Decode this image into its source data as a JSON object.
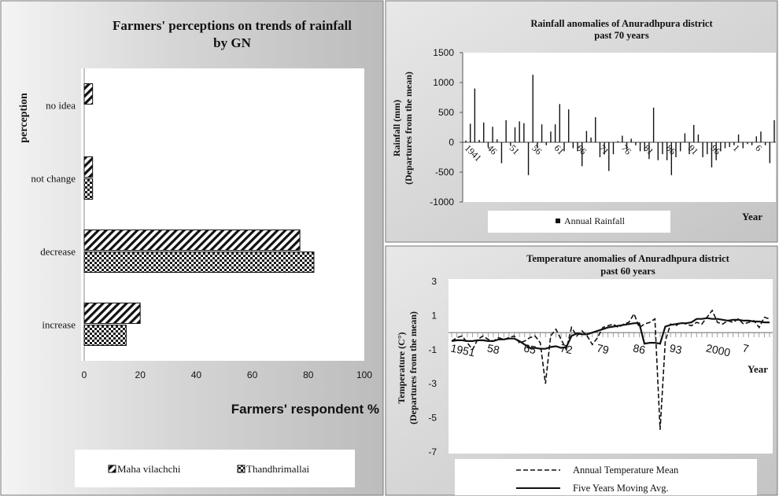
{
  "panels": [
    {
      "type": "bar",
      "orientation": "horizontal",
      "title_line1": "Farmers' perceptions on trends of rainfall",
      "title_line2": "by GN",
      "categories": [
        "increase",
        "decrease",
        "not change",
        "no idea"
      ],
      "series": [
        {
          "name": "Maha vilachchi",
          "values": [
            20,
            77,
            3,
            3
          ],
          "pattern": "diagonal-hatch"
        },
        {
          "name": "Thandhrimallai",
          "values": [
            15,
            82,
            3,
            0
          ],
          "pattern": "checker"
        }
      ],
      "xlabel": "Farmers' respondent %",
      "ylabel": "perception",
      "xlim": [
        0,
        100
      ],
      "xticks": [
        "0",
        "20",
        "40",
        "60",
        "80",
        "100"
      ],
      "legend_placement": "bottom",
      "grid": false
    },
    {
      "type": "bar",
      "title_line1": "Rainfall anomalies of Anuradhpura district",
      "title_line2": "past 70 years",
      "ylabel_line1": "Rainfall (mm)",
      "ylabel_line2": "(Departures from the mean)",
      "xlabel": "Year",
      "ylim": [
        -1000,
        1500
      ],
      "yticks": [
        "1500",
        "1000",
        "500",
        "0",
        "-500",
        "-1000"
      ],
      "x_start_year": 1941,
      "xtick_labels": [
        "1941",
        "46",
        "51",
        "56",
        "61",
        "66",
        "71",
        "76",
        "81",
        "86",
        "91",
        "96",
        "1",
        "6"
      ],
      "series": [
        {
          "name": "Annual Rainfall",
          "values": [
            30,
            310,
            900,
            40,
            330,
            -80,
            260,
            50,
            -350,
            370,
            -60,
            250,
            350,
            320,
            -550,
            1130,
            -100,
            300,
            -50,
            180,
            300,
            640,
            -150,
            550,
            -100,
            -150,
            -400,
            190,
            80,
            420,
            -250,
            -200,
            -480,
            -200,
            20,
            110,
            -120,
            60,
            -50,
            -150,
            -150,
            -280,
            580,
            -300,
            -200,
            -300,
            -550,
            -250,
            -150,
            150,
            -200,
            290,
            130,
            -250,
            -200,
            -420,
            -300,
            -150,
            -100,
            -80,
            -50,
            130,
            -100,
            -30,
            -50,
            100,
            180,
            -50,
            -350,
            370
          ]
        }
      ],
      "legend_placement": "bottom",
      "grid": false
    },
    {
      "type": "line",
      "title_line1": "Temperature anomalies of Anuradhpura district",
      "title_line2": "past 60 years",
      "ylabel_line1": "Temperature  (C°)",
      "ylabel_line2": "(Departures from the mean)",
      "xlabel": "Year",
      "ylim": [
        -7,
        3
      ],
      "yticks": [
        "3",
        "1",
        "-1",
        "-3",
        "-5",
        "-7"
      ],
      "x_start_year": 1951,
      "xtick_labels": [
        "1951",
        "58",
        "65",
        "72",
        "79",
        "86",
        "93",
        "2000",
        "7"
      ],
      "series": [
        {
          "name": "Annual Temperature Mean",
          "style": "dashed",
          "values": [
            -0.5,
            -0.3,
            -0.2,
            -0.6,
            -1.0,
            -0.4,
            -0.2,
            -0.4,
            -0.5,
            -0.3,
            -0.4,
            -0.3,
            -0.2,
            -0.6,
            -0.5,
            -0.3,
            -0.2,
            -0.6,
            -3.0,
            -0.2,
            0.2,
            -0.4,
            -1.0,
            0.3,
            -0.2,
            0.1,
            -0.2,
            -0.7,
            -0.3,
            0.3,
            0.4,
            0.5,
            0.3,
            0.5,
            0.6,
            1.1,
            0.3,
            0.5,
            0.6,
            0.8,
            -5.7,
            -0.5,
            0.5,
            0.4,
            0.6,
            0.5,
            0.4,
            0.6,
            0.5,
            0.9,
            1.3,
            0.6,
            0.5,
            0.7,
            0.6,
            0.8,
            0.5,
            0.6,
            0.7,
            0.3,
            0.9,
            0.8
          ]
        },
        {
          "name": "Five Years Moving Avg.",
          "style": "solid",
          "values": [
            -0.5,
            -0.45,
            -0.45,
            -0.5,
            -0.5,
            -0.45,
            -0.45,
            -0.5,
            -0.5,
            -0.4,
            -0.4,
            -0.35,
            -0.35,
            -0.5,
            -0.7,
            -0.9,
            -0.9,
            -0.95,
            -0.95,
            -0.85,
            -0.8,
            -0.9,
            -0.85,
            -0.2,
            -0.05,
            -0.1,
            -0.1,
            0.0,
            0.1,
            0.2,
            0.3,
            0.35,
            0.4,
            0.45,
            0.5,
            0.55,
            0.55,
            -0.65,
            -0.6,
            -0.6,
            -0.65,
            0.35,
            0.45,
            0.5,
            0.55,
            0.55,
            0.6,
            0.8,
            0.8,
            0.85,
            0.8,
            0.8,
            0.75,
            0.7,
            0.75,
            0.75,
            0.7,
            0.7,
            0.65,
            0.65,
            0.6,
            0.6
          ]
        }
      ],
      "legend_placement": "bottom",
      "grid": false
    }
  ]
}
